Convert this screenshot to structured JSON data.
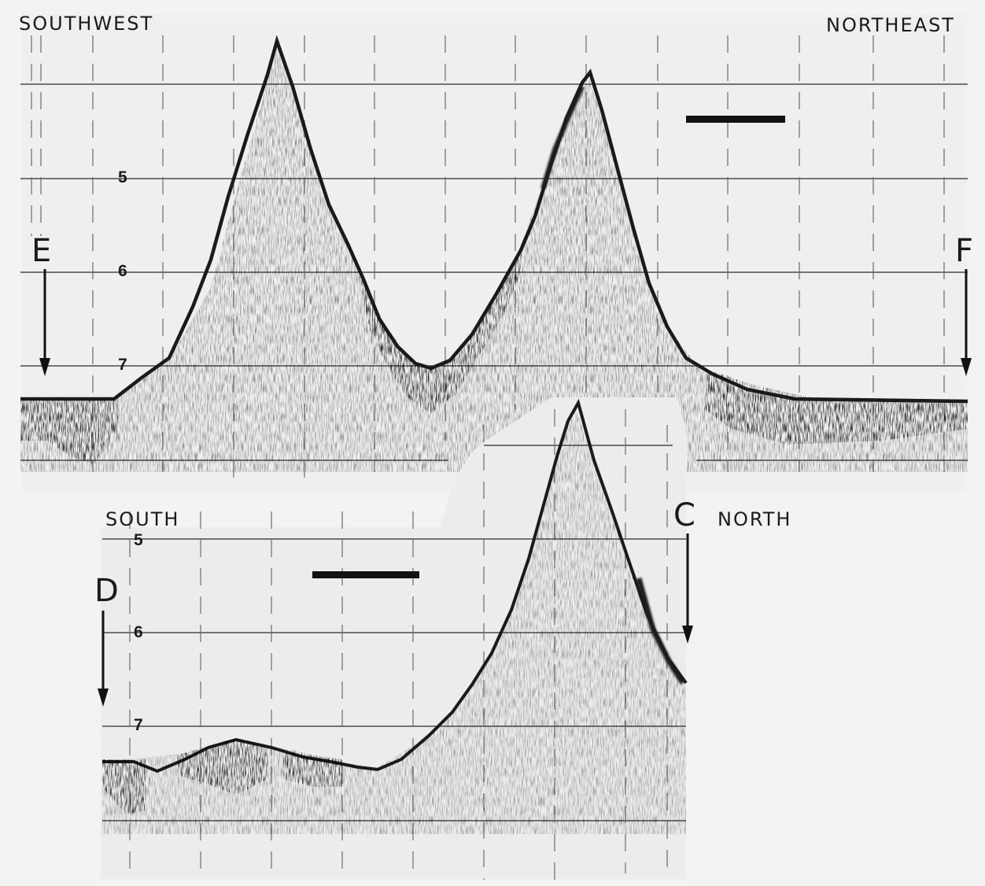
{
  "top_profile": {
    "left_direction": "SOUTHWEST",
    "right_direction": "NORTHEAST",
    "left_point": "E",
    "right_point": "F",
    "depth_labels": [
      "5",
      "6",
      "7"
    ]
  },
  "bottom_profile": {
    "left_direction": "SOUTH",
    "right_direction": "NORTH",
    "left_point": "D",
    "right_point": "C",
    "depth_labels": [
      "5",
      "6",
      "7"
    ]
  },
  "colors": {
    "paper": "#f3f3f2",
    "record_ink": "#1a1a1a",
    "grid": "#2a2a2a"
  }
}
